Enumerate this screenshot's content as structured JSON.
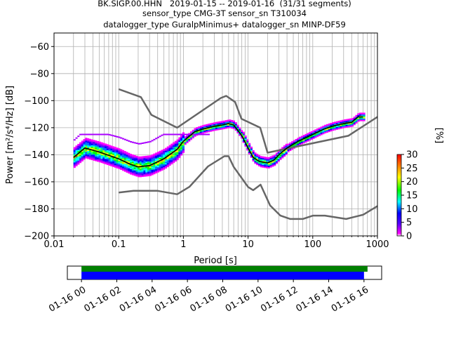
{
  "chart_data": {
    "type": "heatmap",
    "title_lines": [
      "BK.SIGP.00.HHN   2019-01-15 -- 2019-01-16  (31/31 segments)",
      "sensor_type CMG-3T sensor_sn T310034",
      "datalogger_type GuralpMinimus+ datalogger_sn MINP-DF59"
    ],
    "xlabel": "Period [s]",
    "ylabel": "Power [m²/s⁴/Hz] [dB]",
    "xscale": "log",
    "xlim": [
      0.01,
      1000
    ],
    "ylim": [
      -200,
      -50
    ],
    "xticks": [
      0.01,
      0.1,
      1,
      10,
      100,
      1000
    ],
    "xtick_labels": [
      "0.01",
      "0.1",
      "1",
      "10",
      "100",
      "1000"
    ],
    "yticks": [
      -200,
      -180,
      -160,
      -140,
      -120,
      -100,
      -80,
      -60
    ],
    "ytick_labels": [
      "−200",
      "−180",
      "−160",
      "−140",
      "−120",
      "−100",
      "−80",
      "−60"
    ],
    "grid": true,
    "colorbar": {
      "label": "[%]",
      "range": [
        0,
        30
      ],
      "ticks": [
        0,
        5,
        10,
        15,
        20,
        25,
        30
      ],
      "tick_labels": [
        "0",
        "5",
        "10",
        "15",
        "20",
        "25",
        "30"
      ]
    },
    "nhnm": {
      "name": "",
      "color": "#666666",
      "x": [
        0.1,
        0.22,
        0.32,
        0.8,
        3.8,
        4.6,
        6.3,
        7.9,
        15.4,
        20,
        354.8,
        1000
      ],
      "y": [
        -91.5,
        -97.4,
        -110.5,
        -120,
        -98,
        -96.5,
        -101,
        -113.5,
        -120,
        -138.5,
        -126,
        -112
      ]
    },
    "nlnm": {
      "name": "",
      "color": "#666666",
      "x": [
        0.1,
        0.17,
        0.4,
        0.8,
        1.24,
        2.4,
        4.3,
        5,
        6,
        10,
        12,
        15.6,
        21.9,
        31.6,
        45,
        70,
        101,
        154,
        328,
        600,
        1000
      ],
      "y": [
        -168,
        -166.7,
        -166.7,
        -169.2,
        -163.7,
        -148.6,
        -141.1,
        -141.1,
        -149,
        -163.8,
        -166.2,
        -162.1,
        -177.5,
        -185,
        -187.5,
        -187.5,
        -185,
        -185,
        -187.5,
        -184.4,
        -178
      ]
    },
    "mode_curve": {
      "name": "",
      "color": "#000000",
      "x": [
        0.02,
        0.03,
        0.05,
        0.1,
        0.15,
        0.2,
        0.3,
        0.5,
        0.8,
        1.0,
        1.5,
        2,
        3,
        4,
        5,
        6,
        8,
        10,
        12,
        15,
        20,
        25,
        30,
        40,
        60,
        100,
        150,
        200,
        300,
        400,
        500,
        600
      ],
      "y": [
        -142,
        -135,
        -138,
        -143,
        -147,
        -149,
        -148,
        -143,
        -136,
        -130,
        -123,
        -121,
        -119,
        -118,
        -117,
        -118,
        -126,
        -135,
        -142,
        -145,
        -146,
        -144,
        -140,
        -135,
        -130,
        -125,
        -121,
        -119,
        -117,
        -116,
        -112,
        -112
      ]
    },
    "segments": {
      "label": "",
      "time_ticks": [
        "01-16 00",
        "01-16 02",
        "01-16 04",
        "01-16 06",
        "01-16 08",
        "01-16 10",
        "01-16 12",
        "01-16 14",
        "01-16 16"
      ],
      "green_bar": {
        "start_hour": 0,
        "end_hour": 16.2,
        "color": "#008000"
      },
      "blue_bar": {
        "start_hour": 0,
        "end_hour": 16.0,
        "color": "#0000ff"
      },
      "axis_range_hours": [
        -0.8,
        17.0
      ]
    }
  }
}
